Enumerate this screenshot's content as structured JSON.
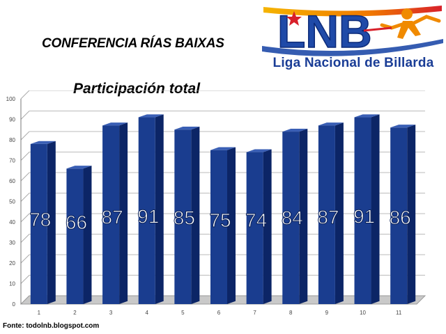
{
  "header": {
    "title": "CONFERENCIA RÍAS BAIXAS",
    "subtitle": "Participación total"
  },
  "logo": {
    "wordmark": "LNB",
    "tagline": "Liga Nacional de Billarda",
    "colors": {
      "blue": "#1f4aa8",
      "orange": "#f08a00",
      "red": "#d8202a"
    }
  },
  "footer": {
    "source": "Fonte: todolnb.blogspot.com"
  },
  "colors": {
    "bar_front": "#1a3d8f",
    "bar_side": "#0c2566",
    "bar_top": "#3a5fb5",
    "label": "#ffffff"
  },
  "chart_data": {
    "type": "bar",
    "title": "Participación total",
    "categories": [
      "1",
      "2",
      "3",
      "4",
      "5",
      "6",
      "7",
      "8",
      "9",
      "10",
      "11"
    ],
    "values": [
      78,
      66,
      87,
      91,
      85,
      75,
      74,
      84,
      87,
      91,
      86
    ],
    "ylim": [
      0,
      100
    ],
    "yticks": [
      0,
      10,
      20,
      30,
      40,
      50,
      60,
      70,
      80,
      90,
      100
    ],
    "grid": true,
    "legend": "none",
    "data_labels": true
  }
}
